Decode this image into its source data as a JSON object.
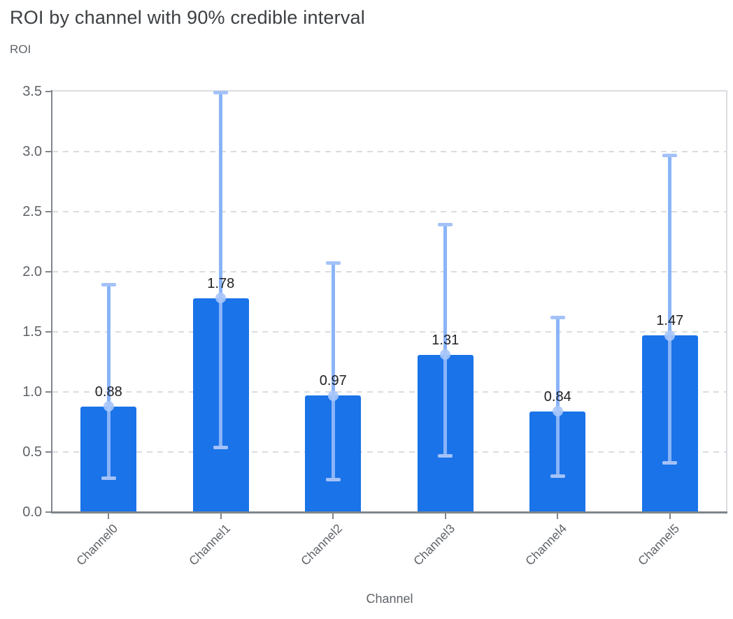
{
  "chart_data": {
    "type": "bar",
    "title": "ROI by channel with 90% credible interval",
    "ylabel": "ROI",
    "xlabel": "Channel",
    "ylim": [
      0,
      3.5
    ],
    "ytick_step": 0.5,
    "yticks": [
      "3.5",
      "3.0",
      "2.5",
      "2.0",
      "1.5",
      "1.0",
      "0.5",
      "0.0"
    ],
    "grid": "horizontal-dashed",
    "legend": "none",
    "categories": [
      "Channel0",
      "Channel1",
      "Channel2",
      "Channel3",
      "Channel4",
      "Channel5"
    ],
    "series": [
      {
        "name": "ROI",
        "values": [
          0.88,
          1.78,
          0.97,
          1.31,
          0.84,
          1.47
        ]
      }
    ],
    "value_labels": [
      "0.88",
      "1.78",
      "0.97",
      "1.31",
      "0.84",
      "1.47"
    ],
    "error_bars": {
      "label": "90% credible interval",
      "lower": [
        0.28,
        0.54,
        0.27,
        0.47,
        0.3,
        0.41
      ],
      "upper": [
        1.89,
        3.49,
        2.07,
        2.39,
        1.62,
        2.97
      ]
    },
    "colors": {
      "bar": "#1a73e8",
      "error_line": "#8ab4f8",
      "error_cap": "#a5c2f8",
      "mean_dot": "#aac7fa",
      "gridline": "#dadce0",
      "axis_line": "#80868b",
      "axis_text": "#5f6368",
      "value_text": "#202124",
      "title_text": "#3c4043",
      "background": "#ffffff"
    }
  }
}
